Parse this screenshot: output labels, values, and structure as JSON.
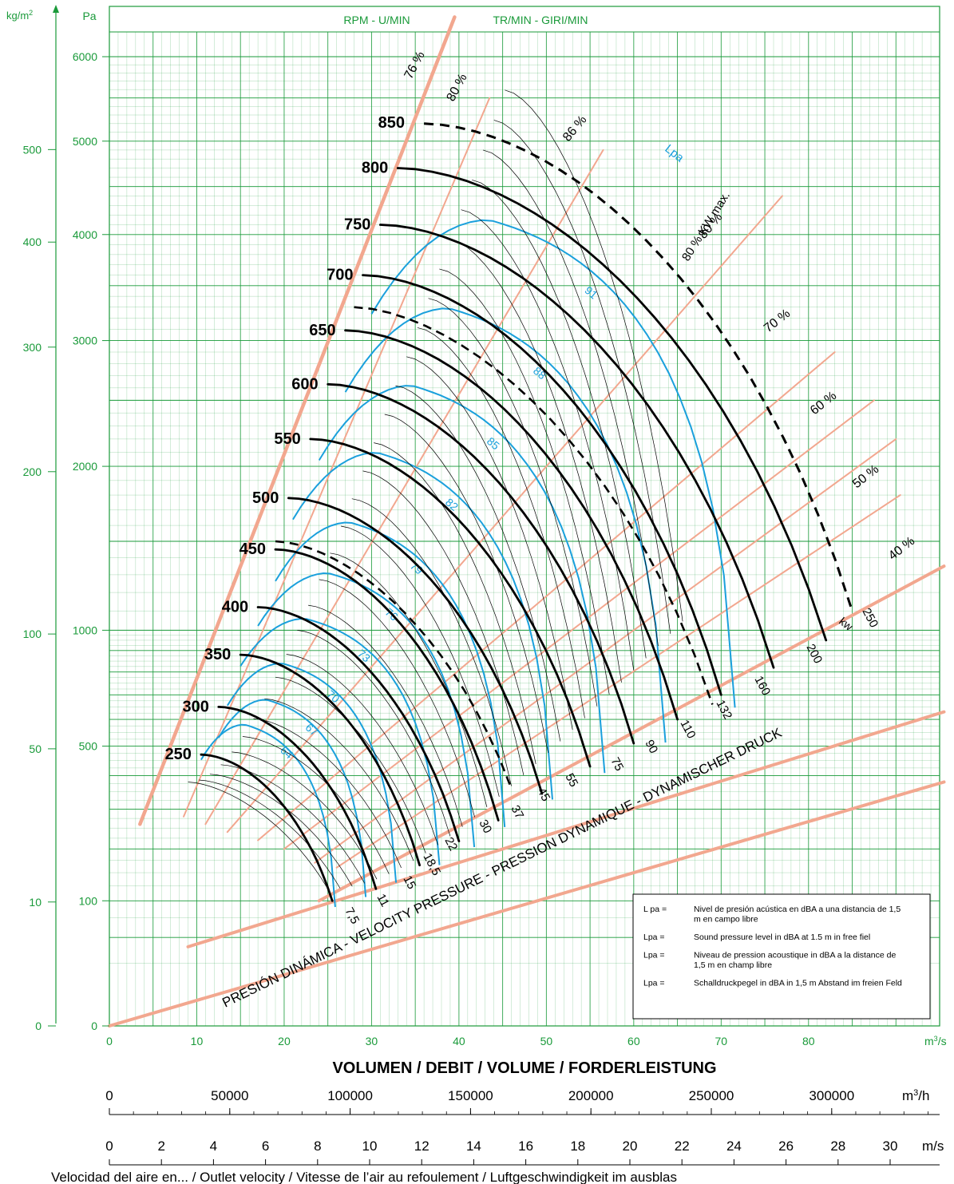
{
  "chart_data": {
    "type": "line",
    "title": "",
    "header": {
      "left": "RPM - U/MIN",
      "right": "TR/MIN - GIRI/MIN"
    },
    "y_axes": {
      "pa": {
        "unit": "Pa",
        "ticks": [
          0,
          100,
          500,
          1000,
          2000,
          3000,
          4000,
          5000,
          6000
        ],
        "scale": "log-like (sqrt-compressed)"
      },
      "kgm2": {
        "unit": "kg/m",
        "sup": "2",
        "ticks": [
          0,
          10,
          50,
          100,
          200,
          300,
          400,
          500
        ]
      }
    },
    "x_axis": {
      "unit": "m",
      "unit_sup": "3",
      "unit_suffix": "/s",
      "ticks": [
        0,
        10,
        20,
        30,
        40,
        50,
        60,
        70,
        80
      ],
      "range": [
        0,
        95
      ]
    },
    "xlabel": "VOLUMEN / DEBIT / VOLUME / FORDERLEISTUNG",
    "axis_m3h": {
      "unit": "m",
      "unit_sup": "3",
      "unit_suffix": "/h",
      "ticks": [
        "0",
        "50000",
        "100000",
        "150000",
        "200000",
        "250000",
        "300000"
      ]
    },
    "axis_ms": {
      "unit": "m/s",
      "ticks": [
        "0",
        "2",
        "4",
        "6",
        "8",
        "10",
        "12",
        "14",
        "16",
        "18",
        "20",
        "22",
        "24",
        "26",
        "28",
        "30"
      ]
    },
    "bottom_caption": "Velocidad del aire en... / Outlet velocity / Vitesse de l’air au refoulement / Luftgeschwindigkeit im ausblas",
    "rpm_curves": [
      {
        "name": "250",
        "start": [
          10.5,
          470
        ],
        "end": [
          25.5,
          100
        ]
      },
      {
        "name": "300",
        "start": [
          12.5,
          650
        ],
        "end": [
          30.5,
          120
        ]
      },
      {
        "name": "350",
        "start": [
          15,
          880
        ],
        "end": [
          35.5,
          165
        ]
      },
      {
        "name": "400",
        "start": [
          17,
          1120
        ],
        "end": [
          40,
          218
        ]
      },
      {
        "name": "450",
        "start": [
          19,
          1450
        ],
        "end": [
          44.5,
          270
        ]
      },
      {
        "name": "500",
        "start": [
          20.5,
          1780
        ],
        "end": [
          49.5,
          345
        ]
      },
      {
        "name": "550",
        "start": [
          23,
          2200
        ],
        "end": [
          55,
          430
        ]
      },
      {
        "name": "600",
        "start": [
          25,
          2630
        ],
        "end": [
          60,
          510
        ]
      },
      {
        "name": "650",
        "start": [
          27,
          3090
        ],
        "end": [
          65,
          600
        ]
      },
      {
        "name": "700",
        "start": [
          29,
          3600
        ],
        "end": [
          70,
          700
        ]
      },
      {
        "name": "750",
        "start": [
          31,
          4100
        ],
        "end": [
          76,
          820
        ]
      },
      {
        "name": "800",
        "start": [
          33,
          4700
        ],
        "end": [
          82,
          950
        ]
      }
    ],
    "rpm_label_850": "850",
    "kw_max_label": "80 % KW max.",
    "kw_max_curve": {
      "start": [
        36,
        5200
      ],
      "end": [
        85,
        1100
      ]
    },
    "kw_dashed_lines": [
      {
        "start": [
          19,
          1500
        ],
        "end": [
          46,
          360
        ]
      },
      {
        "start": [
          28,
          3300
        ],
        "end": [
          69,
          660
        ]
      }
    ],
    "lpa_label": "Lpa",
    "lpa_curves": [
      {
        "name": "64",
        "x_start": 10.5,
        "x_end": 26,
        "peak": 580
      },
      {
        "name": "67",
        "x_start": 12.5,
        "x_end": 29.5,
        "peak": 680
      },
      {
        "name": "70",
        "x_start": 13.5,
        "x_end": 33,
        "peak": 840
      },
      {
        "name": "73",
        "x_start": 15,
        "x_end": 38,
        "peak": 1060
      },
      {
        "name": "76",
        "x_start": 17,
        "x_end": 42,
        "peak": 1310
      },
      {
        "name": "79",
        "x_start": 19,
        "x_end": 45.5,
        "peak": 1620
      },
      {
        "name": "82",
        "x_start": 21,
        "x_end": 51,
        "peak": 2100
      },
      {
        "name": "85",
        "x_start": 24,
        "x_end": 57,
        "peak": 2620
      },
      {
        "name": "88",
        "x_start": 27,
        "x_end": 64,
        "peak": 3290
      },
      {
        "name": "91",
        "x_start": 30,
        "x_end": 72,
        "peak": 4150
      }
    ],
    "kw_labels": [
      "7,5",
      "11",
      "15",
      "18,5",
      "22",
      "30",
      "37",
      "45",
      "55",
      "75",
      "90",
      "110",
      "132",
      "160",
      "200",
      "250"
    ],
    "kw_unit": "kw",
    "efficiency_lines": [
      {
        "name": "76 %"
      },
      {
        "name": "80 %"
      },
      {
        "name": "86 %"
      },
      {
        "name": "80 %"
      },
      {
        "name": "70 %"
      },
      {
        "name": "60 %"
      },
      {
        "name": "50 %"
      },
      {
        "name": "40 %"
      }
    ],
    "velocity_pressure_label": "PRESIÓN DINÁMICA - VELOCITY PRESSURE - PRESSION DYNAMIQUE - DYNAMISCHER DRUCK",
    "legend": [
      {
        "key": "L pa =",
        "text": "Nivel de presión acústica en dBA a una distancia de 1,5 m en campo libre"
      },
      {
        "key": "Lpa =",
        "text": "Sound pressure level in dBA at  1.5 m in free fiel"
      },
      {
        "key": "Lpa =",
        "text": "Niveau de pression acoustique in dBA a la distance de 1,5 m en champ libre"
      },
      {
        "key": "Lpa =",
        "text": "Schalldruckpegel in dBA in 1,5 m Abstand im freien Feld"
      }
    ],
    "colors": {
      "grid": "#1a9a3a",
      "rpm": "#000000",
      "lpa": "#1aa0dc",
      "efficiency": "#f2a78f"
    }
  }
}
